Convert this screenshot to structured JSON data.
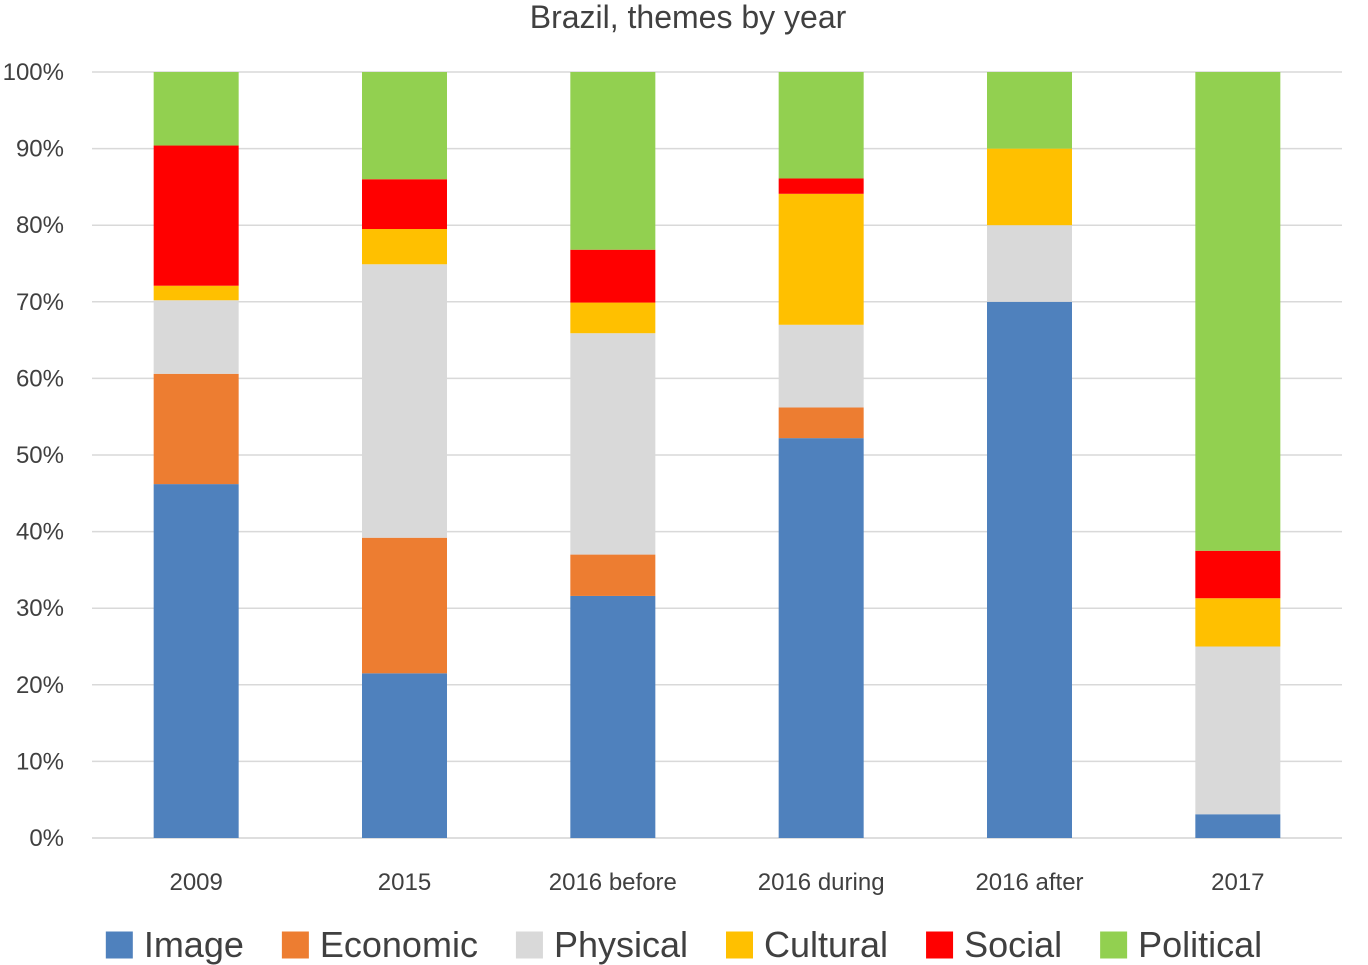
{
  "chart_data": {
    "type": "bar",
    "stacked": true,
    "percent": true,
    "title": "Brazil, themes by year",
    "xlabel": "",
    "ylabel": "",
    "ylim": [
      0,
      100
    ],
    "yticks": [
      "0%",
      "10%",
      "20%",
      "30%",
      "40%",
      "50%",
      "60%",
      "70%",
      "80%",
      "90%",
      "100%"
    ],
    "grid": true,
    "legend_position": "bottom",
    "categories": [
      "2009",
      "2015",
      "2016 before",
      "2016 during",
      "2016 after",
      "2017"
    ],
    "series": [
      {
        "name": "Image",
        "color": "#4F81BD",
        "values": [
          46.2,
          21.5,
          31.6,
          52.2,
          70.0,
          3.1
        ]
      },
      {
        "name": "Economic",
        "color": "#ED7D31",
        "values": [
          14.4,
          17.7,
          5.4,
          4.0,
          0.0,
          0.0
        ]
      },
      {
        "name": "Physical",
        "color": "#D9D9D9",
        "values": [
          9.6,
          35.7,
          28.9,
          10.8,
          10.0,
          21.9
        ]
      },
      {
        "name": "Cultural",
        "color": "#FFC000",
        "values": [
          1.9,
          4.6,
          4.0,
          17.1,
          10.0,
          6.3
        ]
      },
      {
        "name": "Social",
        "color": "#FF0000",
        "values": [
          18.3,
          6.5,
          6.9,
          2.0,
          0.0,
          6.2
        ]
      },
      {
        "name": "Political",
        "color": "#92D050",
        "values": [
          9.6,
          14.0,
          23.2,
          13.9,
          10.0,
          62.5
        ]
      }
    ]
  }
}
